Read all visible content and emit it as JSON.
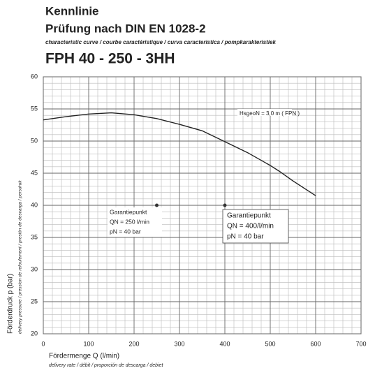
{
  "chart_data": {
    "type": "line",
    "title": "Kennlinie",
    "subtitle": "Prüfung nach DIN EN 1028-2",
    "languages": "characteristic curve / courbe caractéristique / curva caracteristica / pompkarakteristiek",
    "model": "FPH  40 - 250 - 3HH",
    "x_label": "Fördermenge Q (l/min)",
    "x_label_translations": "delivery rate / débit / proporción de descarga / debiet",
    "y_label": "Förderdruck p (bar)",
    "y_label_translations": "delivery pressure / pression de refoulement / presión de descarga / persdruk",
    "x": [
      0,
      50,
      100,
      150,
      200,
      250,
      300,
      350,
      400,
      450,
      500,
      520,
      550,
      600
    ],
    "series": [
      {
        "color": "#222222",
        "values": [
          53.3,
          53.8,
          54.2,
          54.4,
          54.1,
          53.5,
          52.6,
          51.6,
          49.9,
          48.2,
          46.2,
          45.3,
          43.8,
          41.5
        ]
      }
    ],
    "points": {
      "x": [
        250,
        400
      ],
      "y": [
        40,
        40
      ],
      "color": "#333333"
    },
    "annotations": [
      {
        "lines": [
          "HsgeoN = 3,0 m ( FPN )"
        ]
      },
      {
        "lines": [
          "Garantiepunkt",
          "QN = 250 l/min",
          "pN = 40 bar"
        ]
      },
      {
        "lines": [
          "Garantiepunkt",
          "QN = 400/l/min",
          "pN = 40 bar"
        ]
      }
    ],
    "xlim": [
      0,
      700
    ],
    "xticks": [
      0,
      100,
      200,
      300,
      400,
      500,
      600,
      700
    ],
    "ylim": [
      20,
      60
    ],
    "yticks": [
      20,
      25,
      30,
      35,
      40,
      45,
      50,
      55,
      60
    ],
    "grid": true
  }
}
